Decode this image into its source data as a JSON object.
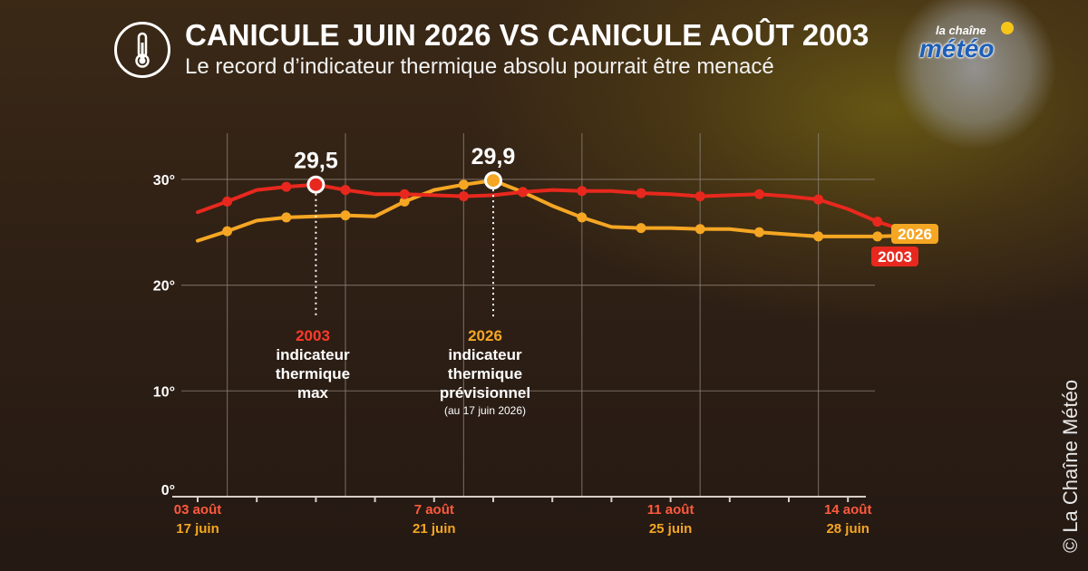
{
  "header": {
    "title": "CANICULE JUIN 2026 VS CANICULE AOÛT 2003",
    "subtitle": "Le record d’indicateur thermique absolu pourrait être menacé",
    "icon": "thermometer-icon"
  },
  "logo": {
    "top": "la chaîne",
    "main": "météo"
  },
  "credit": "© La Chaîne Météo",
  "colors": {
    "series2003": "#e8281e",
    "series2026": "#f5a623",
    "grid": "#8a7f74",
    "text": "#ffffff"
  },
  "annotations": {
    "a2003": {
      "year": "2003",
      "l1": "indicateur",
      "l2": "thermique",
      "l3": "max"
    },
    "a2026": {
      "year": "2026",
      "l1": "indicateur",
      "l2": "thermique",
      "l3": "prévisionnel",
      "note": "(au 17 juin 2026)"
    }
  },
  "chart_data": {
    "type": "line",
    "title": "CANICULE JUIN 2026 VS CANICULE AOÛT 2003",
    "ylim": [
      0,
      30
    ],
    "yticks": [
      0,
      10,
      20,
      30
    ],
    "ytick_labels": [
      "0°",
      "10°",
      "20°",
      "30°"
    ],
    "x_ticks": [
      {
        "i": 0,
        "top": "03 août",
        "bottom": "17 juin"
      },
      {
        "i": 8,
        "top": "7 août",
        "bottom": "21 juin"
      },
      {
        "i": 16,
        "top": "11 août",
        "bottom": "25 juin"
      },
      {
        "i": 22,
        "top": "14 août",
        "bottom": "28 juin"
      }
    ],
    "series": [
      {
        "name": "2003",
        "values": [
          26.9,
          27.9,
          29.0,
          29.3,
          29.5,
          29.0,
          28.6,
          28.6,
          28.5,
          28.4,
          28.5,
          28.8,
          29.0,
          28.9,
          28.9,
          28.7,
          28.6,
          28.4,
          28.5,
          28.6,
          28.4,
          28.1,
          27.2,
          26.0,
          25.1
        ],
        "point_labels": {
          "4": "29,5"
        },
        "marker": "every-other-even"
      },
      {
        "name": "2026",
        "values": [
          24.2,
          25.1,
          26.1,
          26.4,
          26.5,
          26.6,
          26.5,
          27.9,
          29.0,
          29.5,
          29.9,
          28.8,
          27.5,
          26.4,
          25.5,
          25.4,
          25.4,
          25.3,
          25.3,
          25.0,
          24.8,
          24.6,
          24.6,
          24.6,
          24.7
        ],
        "point_labels": {
          "10": "29,9"
        },
        "marker": "every-other-odd"
      }
    ],
    "legend": "inline-right",
    "grid": true
  }
}
